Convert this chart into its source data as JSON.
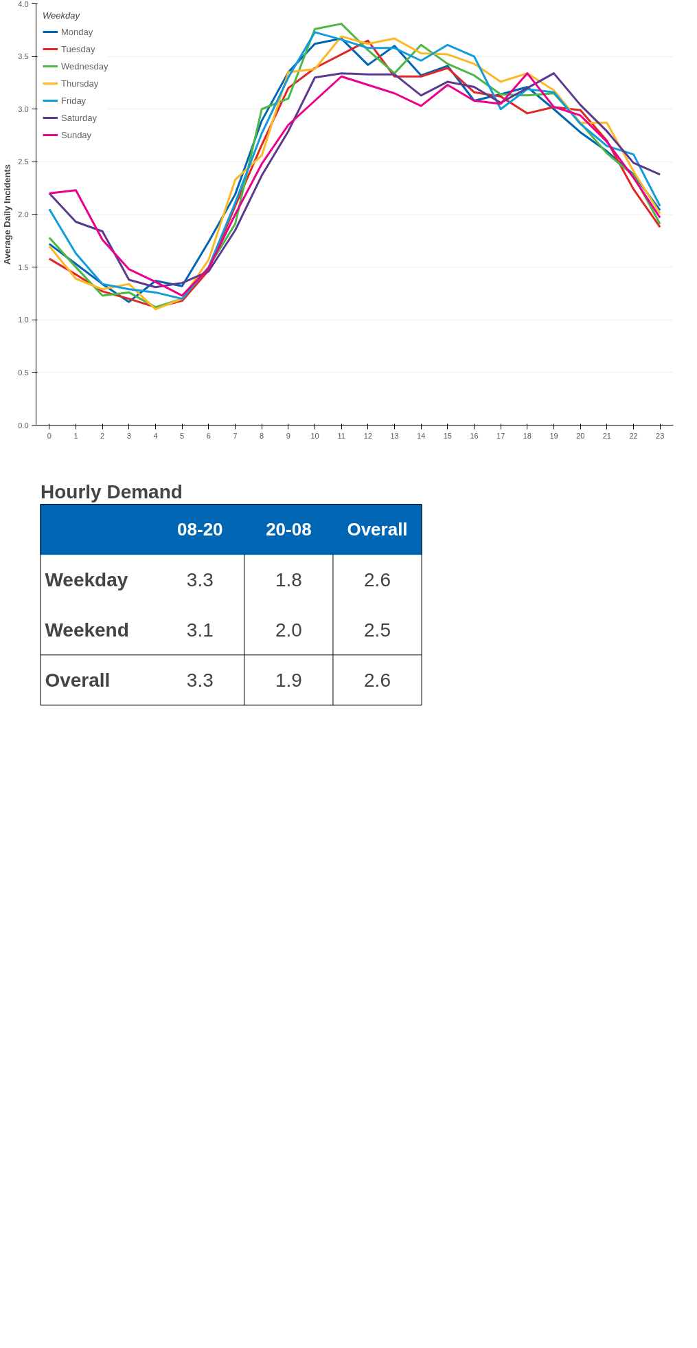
{
  "chart_data": [
    {
      "type": "line",
      "xlabel": null,
      "ylabel": "Average Daily Incidents",
      "legend_title": "Weekday",
      "x": [
        0,
        1,
        2,
        3,
        4,
        5,
        6,
        7,
        8,
        9,
        10,
        11,
        12,
        13,
        14,
        15,
        16,
        17,
        18,
        19,
        20,
        21,
        22,
        23
      ],
      "xlim": [
        -0.5,
        23.5
      ],
      "xticks": [
        0,
        1,
        2,
        3,
        4,
        5,
        6,
        7,
        8,
        9,
        10,
        11,
        12,
        13,
        14,
        15,
        16,
        17,
        18,
        19,
        20,
        21,
        22,
        23
      ],
      "ylim": [
        0,
        4
      ],
      "yticks": [
        {
          "value": 0,
          "label": "0.0"
        },
        0.5,
        {
          "value": 1,
          "label": "1.0"
        },
        1.5,
        {
          "value": 2,
          "label": "2.0"
        },
        2.5,
        {
          "value": 3,
          "label": "3.0"
        },
        3.5,
        {
          "value": 4,
          "label": "4.0"
        }
      ],
      "grid": "y",
      "legend": "top left",
      "marker": "none",
      "line_style": "solid",
      "series": [
        {
          "name": "Monday",
          "color": "#0066b3",
          "values": [
            1.72,
            1.53,
            1.34,
            1.17,
            1.37,
            1.32,
            1.74,
            2.19,
            2.89,
            3.35,
            3.62,
            3.67,
            3.42,
            3.6,
            3.32,
            3.41,
            3.08,
            3.14,
            3.21,
            3.0,
            2.78,
            2.6,
            2.38,
            2.04
          ]
        },
        {
          "name": "Tuesday",
          "color": "#e32626",
          "values": [
            1.58,
            1.43,
            1.27,
            1.2,
            1.12,
            1.18,
            1.47,
            2.08,
            2.66,
            3.2,
            3.39,
            3.52,
            3.65,
            3.31,
            3.31,
            3.39,
            3.16,
            3.12,
            2.96,
            3.02,
            2.99,
            2.7,
            2.24,
            1.88
          ]
        },
        {
          "name": "Wednesday",
          "color": "#4db848",
          "values": [
            1.78,
            1.5,
            1.23,
            1.26,
            1.12,
            1.2,
            1.5,
            1.91,
            3.0,
            3.1,
            3.76,
            3.81,
            3.56,
            3.34,
            3.61,
            3.43,
            3.32,
            3.14,
            3.13,
            3.15,
            2.87,
            2.58,
            2.37,
            1.91
          ]
        },
        {
          "name": "Thursday",
          "color": "#fdb827",
          "values": [
            1.7,
            1.39,
            1.29,
            1.34,
            1.1,
            1.2,
            1.57,
            2.33,
            2.56,
            3.35,
            3.38,
            3.69,
            3.62,
            3.67,
            3.53,
            3.52,
            3.43,
            3.26,
            3.34,
            3.18,
            2.87,
            2.87,
            2.41,
            2.01
          ]
        },
        {
          "name": "Friday",
          "color": "#129cdb",
          "values": [
            2.05,
            1.63,
            1.34,
            1.29,
            1.26,
            1.2,
            1.5,
            2.11,
            2.77,
            3.3,
            3.73,
            3.66,
            3.58,
            3.58,
            3.46,
            3.61,
            3.5,
            3.0,
            3.19,
            3.16,
            2.86,
            2.65,
            2.57,
            2.08
          ]
        },
        {
          "name": "Saturday",
          "color": "#5c3a8f",
          "values": [
            2.2,
            1.93,
            1.84,
            1.38,
            1.31,
            1.35,
            1.46,
            1.85,
            2.37,
            2.79,
            3.3,
            3.34,
            3.33,
            3.33,
            3.13,
            3.26,
            3.21,
            3.06,
            3.2,
            3.34,
            3.04,
            2.79,
            2.49,
            2.38
          ]
        },
        {
          "name": "Sunday",
          "color": "#ec008c",
          "values": [
            2.2,
            2.23,
            1.76,
            1.48,
            1.36,
            1.23,
            1.49,
            2.0,
            2.48,
            2.85,
            3.08,
            3.31,
            3.23,
            3.15,
            3.03,
            3.23,
            3.08,
            3.05,
            3.34,
            3.02,
            2.94,
            2.69,
            2.35,
            1.97
          ]
        }
      ]
    },
    {
      "type": "other",
      "title": "Hourly Demand",
      "categories": [
        "08-20",
        "20-08",
        "Overall"
      ],
      "y_categories": [
        "Weekday",
        "Weekend",
        "Overall"
      ],
      "cell_labels": [
        [
          "3.3",
          "1.8",
          "2.6"
        ],
        [
          "3.1",
          "2.0",
          "2.5"
        ],
        [
          "3.3",
          "1.9",
          "2.6"
        ]
      ],
      "color": "#0066b3"
    }
  ]
}
